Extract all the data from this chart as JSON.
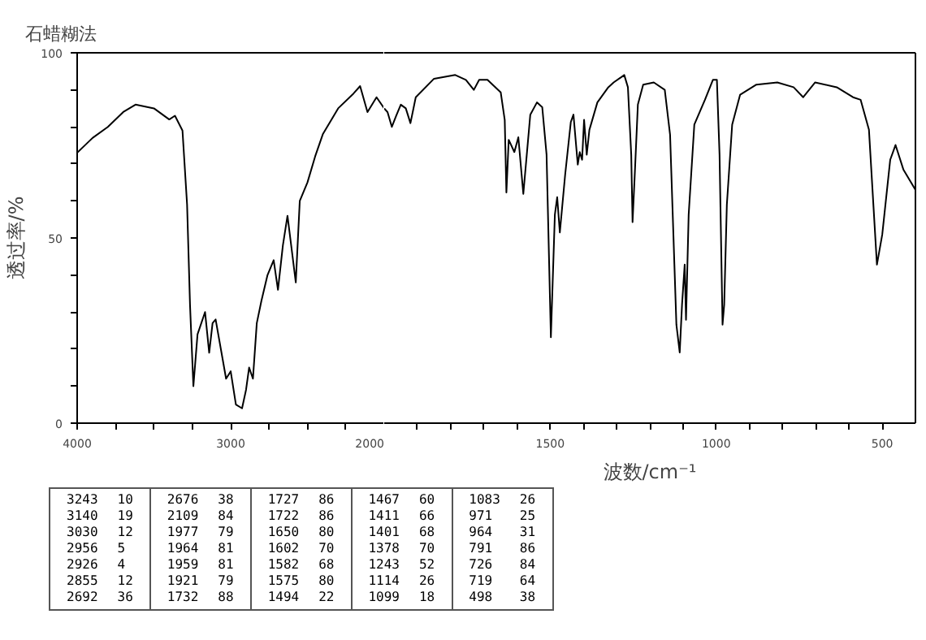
{
  "chart_data": [
    {
      "type": "line",
      "title": "石蜡糊法",
      "ylabel": "透过率/%",
      "color": "#000000",
      "xlim": [
        4000,
        2000
      ],
      "ylim": [
        0,
        100
      ],
      "xticks": [
        4000,
        {
          "value": 3750,
          "label": null
        },
        {
          "value": 3500,
          "label": null
        },
        {
          "value": 3250,
          "label": null
        },
        3000,
        {
          "value": 2750,
          "label": null
        },
        {
          "value": 2500,
          "label": null
        },
        {
          "value": 2250,
          "label": null
        },
        2000
      ],
      "yticks": [
        0,
        {
          "value": 10,
          "label": null
        },
        {
          "value": 20,
          "label": null
        },
        {
          "value": 30,
          "label": null
        },
        {
          "value": 40,
          "label": null
        },
        50,
        {
          "value": 60,
          "label": null
        },
        {
          "value": 70,
          "label": null
        },
        {
          "value": 80,
          "label": null
        },
        {
          "value": 90,
          "label": null
        },
        100
      ],
      "x": [
        4000,
        3900,
        3800,
        3700,
        3620,
        3500,
        3400,
        3363,
        3314,
        3284,
        3265,
        3243,
        3216,
        3167,
        3140,
        3118,
        3098,
        3030,
        3000,
        2966,
        2926,
        2900,
        2880,
        2855,
        2830,
        2800,
        2760,
        2720,
        2692,
        2660,
        2630,
        2576,
        2550,
        2500,
        2450,
        2400,
        2300,
        2200,
        2157,
        2109,
        2050,
        2000
      ],
      "values": [
        73,
        77,
        80,
        84,
        86,
        85,
        82,
        83,
        79,
        59,
        32,
        10,
        24,
        30,
        19,
        27,
        28,
        12,
        14,
        5,
        4,
        9,
        15,
        12,
        27,
        33,
        40,
        44,
        36,
        48,
        56,
        38,
        60,
        65,
        72,
        78,
        85,
        89,
        91,
        84,
        88,
        85
      ],
      "grid": false
    },
    {
      "type": "line",
      "xlabel": "波数/cm⁻¹",
      "color": "#000000",
      "xlim": [
        2000,
        400
      ],
      "ylim": [
        0,
        100
      ],
      "tick_labels": "x",
      "xticks": [
        {
          "value": 1900,
          "label": null
        },
        {
          "value": 1800,
          "label": null
        },
        {
          "value": 1700,
          "label": null
        },
        {
          "value": 1600,
          "label": null
        },
        1500,
        {
          "value": 1400,
          "label": null
        },
        {
          "value": 1300,
          "label": null
        },
        {
          "value": 1200,
          "label": null
        },
        {
          "value": 1100,
          "label": null
        },
        1000,
        {
          "value": 900,
          "label": null
        },
        {
          "value": 800,
          "label": null
        },
        {
          "value": 700,
          "label": null
        },
        {
          "value": 600,
          "label": null
        },
        500
      ],
      "x": [
        2000,
        1990,
        1977,
        1964,
        1950,
        1935,
        1921,
        1905,
        1850,
        1786,
        1754,
        1730,
        1714,
        1689,
        1649,
        1637,
        1632,
        1625,
        1608,
        1596,
        1581,
        1560,
        1540,
        1524,
        1511,
        1498,
        1486,
        1479,
        1471,
        1455,
        1438,
        1430,
        1417,
        1411,
        1404,
        1398,
        1390,
        1382,
        1358,
        1325,
        1309,
        1277,
        1266,
        1256,
        1252,
        1244,
        1236,
        1220,
        1188,
        1155,
        1139,
        1126,
        1120,
        1110,
        1103,
        1095,
        1091,
        1083,
        1066,
        1034,
        1010,
        998,
        990,
        981,
        976,
        968,
        952,
        928,
        879,
        816,
        767,
        738,
        702,
        637,
        588,
        565,
        540,
        516,
        500,
        476,
        460,
        436,
        400
      ],
      "values": [
        85,
        84,
        80,
        83,
        86,
        85,
        81,
        88,
        93,
        94,
        92.7,
        90,
        92.7,
        92.7,
        89.3,
        81.9,
        62.3,
        76.5,
        73.2,
        77.2,
        61.9,
        83.3,
        86.6,
        85.3,
        72.5,
        23.2,
        56.3,
        61,
        51.5,
        67.1,
        81.3,
        83.3,
        69.8,
        73.2,
        71.1,
        81.9,
        72.5,
        79.2,
        86.6,
        90.7,
        92,
        94,
        90.7,
        72.5,
        54.3,
        69.8,
        86,
        91.4,
        92,
        90,
        77.9,
        42.8,
        26.6,
        19.1,
        32,
        42.8,
        27.9,
        56.3,
        80.6,
        87.3,
        92.7,
        92.7,
        72.5,
        26.6,
        32,
        59,
        80.6,
        88.7,
        91.4,
        92,
        90.7,
        88,
        92,
        90.7,
        88,
        87.3,
        79.2,
        42.8,
        50.9,
        71.1,
        75.1,
        68.4,
        63
      ],
      "grid": false,
      "annotations": [
        "3243 10",
        "3140 19",
        "3030 12",
        "2956 5",
        "2926 4",
        "2855 12",
        "2692 36",
        "2676 38",
        "2109 84",
        "1977 79",
        "1964 81",
        "1959 81",
        "1921 79",
        "1732 88",
        "1727 86",
        "1722 86",
        "1650 80",
        "1602 70",
        "1582 68",
        "1575 80",
        "1494 22",
        "1467 60",
        "1411 66",
        "1401 68",
        "1378 70",
        "1243 52",
        "1114 26",
        "1099 18",
        "1083 26",
        "971 25",
        "964 31",
        "791 86",
        "726 84",
        "719 64",
        "498 38"
      ]
    }
  ]
}
